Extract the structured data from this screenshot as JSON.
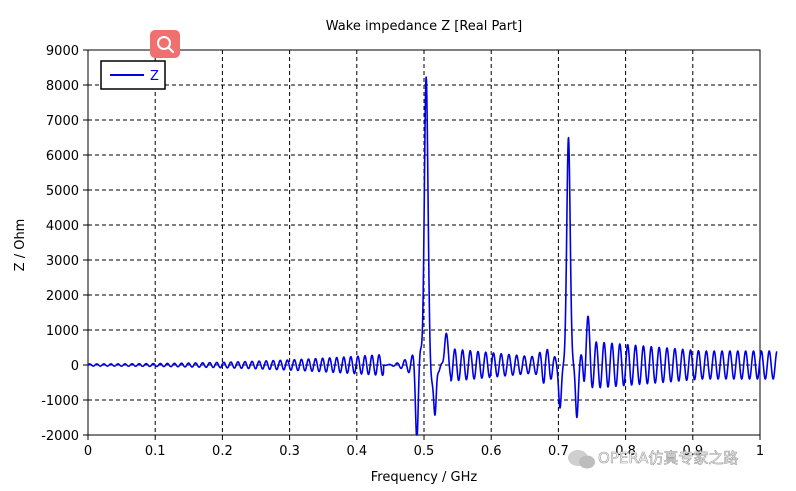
{
  "chart_data": {
    "type": "line",
    "title": "Wake impedance Z [Real Part]",
    "xlabel": "Frequency / GHz",
    "ylabel": "Z / Ohm",
    "xlim": [
      0,
      1
    ],
    "ylim": [
      -2000,
      9000
    ],
    "xticks": [
      0,
      0.1,
      0.2,
      0.3,
      0.4,
      0.5,
      0.6,
      0.7,
      0.8,
      0.9,
      1
    ],
    "xtick_labels": [
      "0",
      "0.1",
      "0.2",
      "0.3",
      "0.4",
      "0.5",
      "0.6",
      "0.7",
      "0.8",
      "0.9",
      "1"
    ],
    "yticks": [
      -2000,
      -1000,
      0,
      1000,
      2000,
      3000,
      4000,
      5000,
      6000,
      7000,
      8000,
      9000
    ],
    "ytick_labels": [
      "-2000",
      "-1000",
      "0",
      "1000",
      "2000",
      "3000",
      "4000",
      "5000",
      "6000",
      "7000",
      "8000",
      "9000"
    ],
    "grid": true,
    "grid_style": "dashed",
    "legend_position": "top-left",
    "series": [
      {
        "name": "Z",
        "color": "#0000e6",
        "x_range": [
          0,
          1.025
        ],
        "features": [
          {
            "type": "baseline-ripple",
            "x_from": 0,
            "x_to": 0.44,
            "amplitude_from": 30,
            "amplitude_to": 300
          },
          {
            "type": "resonance-peak",
            "x": 0.503,
            "peak": 8200,
            "side_minima": [
              -1800,
              -1750
            ]
          },
          {
            "type": "ripple",
            "x_from": 0.52,
            "x_to": 0.68,
            "amplitude_from": 500,
            "amplitude_to": 200
          },
          {
            "type": "resonance-peak",
            "x": 0.715,
            "peak": 6500,
            "side_minima": [
              -1200,
              -1500
            ]
          },
          {
            "type": "ripple",
            "x_from": 0.73,
            "x_to": 1.025,
            "amplitude_from": 700,
            "amplitude_to": 400
          }
        ]
      }
    ]
  },
  "watermark": {
    "icon": "search-icon",
    "icon_color": "#f07070",
    "text": "OPERA仿真专家之路"
  }
}
